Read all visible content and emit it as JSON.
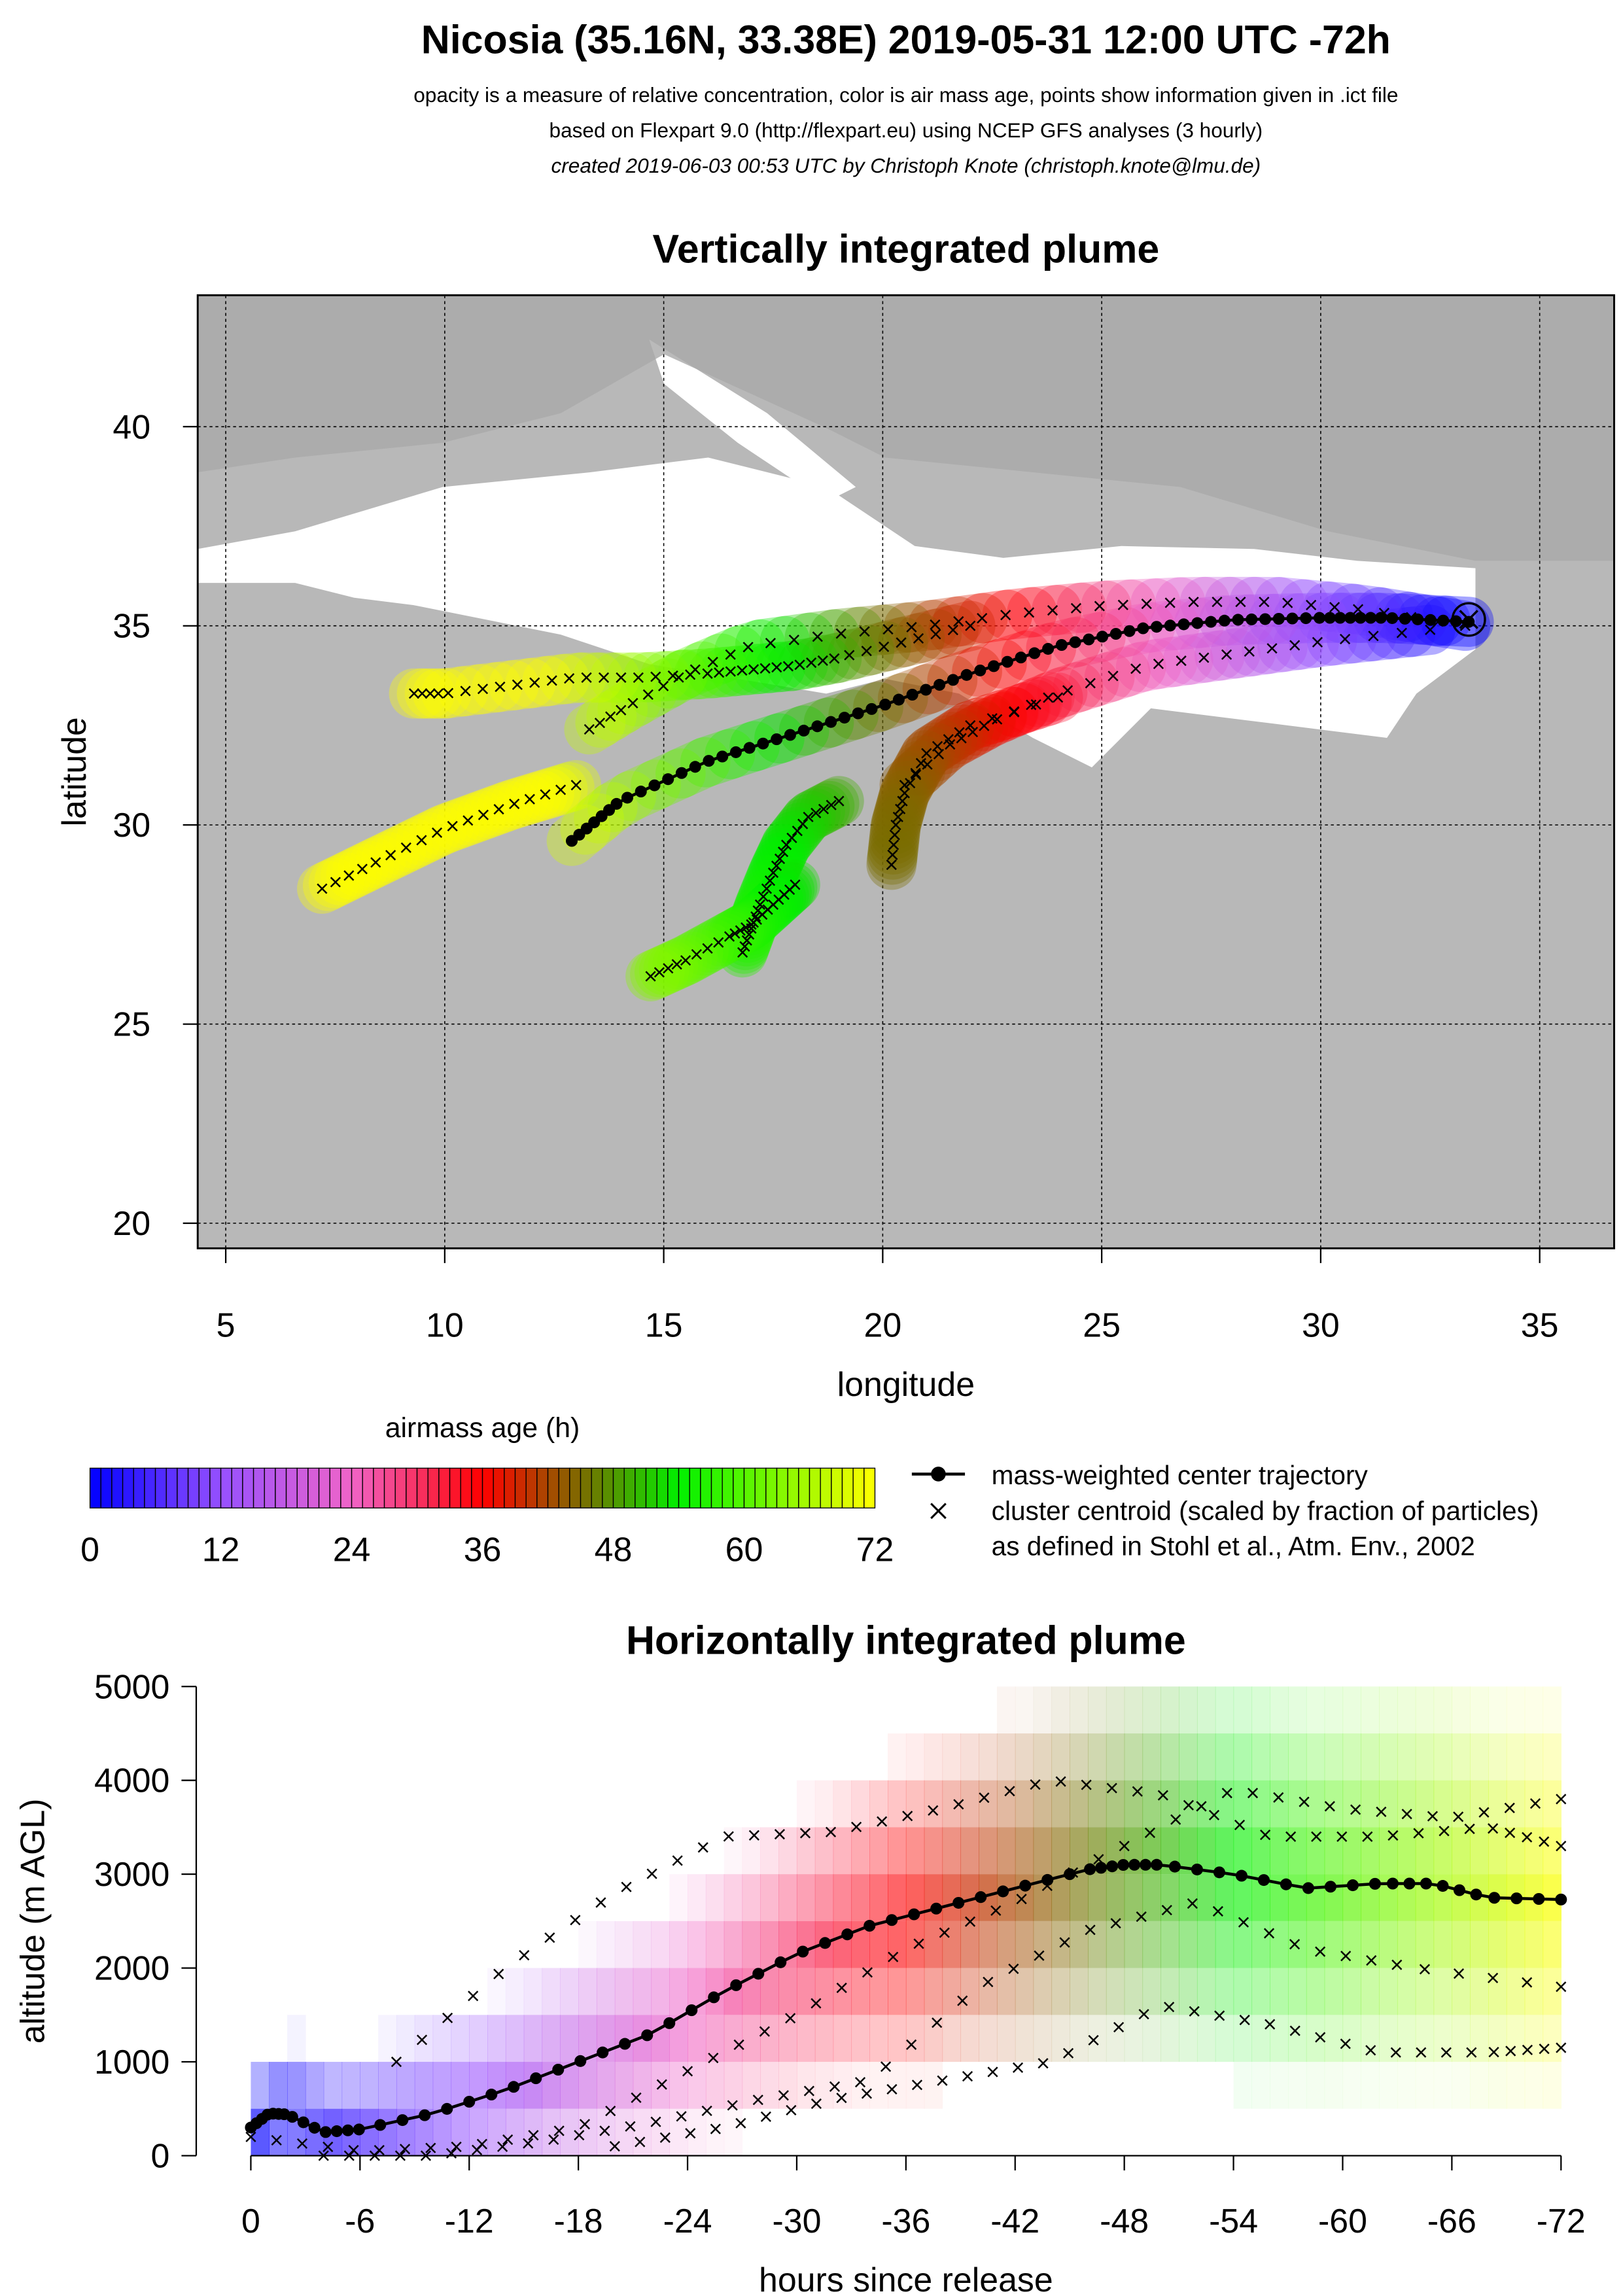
{
  "header": {
    "title": "Nicosia (35.16N, 33.38E) 2019-05-31 12:00 UTC -72h",
    "line1": "opacity is a measure of relative concentration, color is air mass age, points show information given in .ict file",
    "line2": "based on Flexpart 9.0 (http://flexpart.eu) using NCEP GFS analyses (3 hourly)",
    "line3": "created 2019-06-03 00:53 UTC by Christoph Knote (christoph.knote@lmu.de)"
  },
  "chart_data": [
    {
      "type": "scatter",
      "title": "Vertically integrated plume",
      "xlabel": "longitude",
      "ylabel": "latitude",
      "xlim": [
        4.36,
        36.7
      ],
      "ylim": [
        19.37,
        43.3
      ],
      "xticks": [
        "5",
        "10",
        "15",
        "20",
        "25",
        "30",
        "35"
      ],
      "yticks": [
        "20",
        "25",
        "30",
        "35",
        "40"
      ],
      "grid": true,
      "release_point": {
        "lon": 33.38,
        "lat": 35.16
      },
      "center_trajectory": {
        "lon": [
          33.38,
          31.5,
          30,
          28,
          26,
          24,
          22,
          20,
          18,
          16,
          14,
          12.9
        ],
        "lat": [
          35.1,
          35.2,
          35.2,
          35.15,
          34.95,
          34.5,
          33.8,
          33.0,
          32.3,
          31.6,
          30.6,
          29.6
        ]
      },
      "clusters": [
        {
          "lon": [
            33.3,
            31,
            29,
            27,
            25,
            23,
            21,
            19,
            17,
            15.5,
            14.2,
            13.3
          ],
          "lat": [
            35.0,
            35.4,
            35.6,
            35.6,
            35.5,
            35.3,
            35.0,
            34.8,
            34.5,
            33.8,
            33.0,
            32.4
          ]
        },
        {
          "lon": [
            32.5,
            30,
            28,
            26,
            24,
            22.5,
            21.5,
            20.5
          ],
          "lat": [
            34.9,
            34.6,
            34.3,
            34.0,
            33.3,
            32.6,
            32.0,
            31.0
          ]
        },
        {
          "lon": [
            22,
            20.5,
            19,
            18,
            17,
            16,
            14.5,
            13,
            11.5,
            10,
            9.3
          ],
          "lat": [
            35.0,
            34.6,
            34.2,
            34.0,
            33.9,
            33.8,
            33.7,
            33.7,
            33.5,
            33.3,
            33.3
          ]
        },
        {
          "lon": [
            24,
            22,
            21,
            20.5,
            20.3,
            20.2
          ],
          "lat": [
            33.2,
            32.5,
            31.8,
            30.8,
            30.0,
            29.0
          ]
        },
        {
          "lon": [
            19,
            18.3,
            17.8,
            17.5,
            17.2,
            17,
            16.8
          ],
          "lat": [
            30.6,
            30.2,
            29.5,
            28.8,
            28.0,
            27.4,
            26.8
          ]
        },
        {
          "lon": [
            13,
            11.5,
            10,
            8.5,
            7.2
          ],
          "lat": [
            31.0,
            30.5,
            29.9,
            29.1,
            28.4
          ]
        },
        {
          "lon": [
            18,
            17.5,
            17,
            16.5,
            15.5,
            14.7
          ],
          "lat": [
            28.5,
            28.0,
            27.5,
            27.2,
            26.6,
            26.2
          ]
        }
      ]
    },
    {
      "type": "line",
      "title": "Horizontally integrated plume",
      "xlabel": "hours since release",
      "ylabel": "altitude (m AGL)",
      "xlim": [
        0,
        -72
      ],
      "ylim": [
        0,
        5000
      ],
      "xticks": [
        "0",
        "-6",
        "-12",
        "-18",
        "-24",
        "-30",
        "-36",
        "-42",
        "-48",
        "-54",
        "-60",
        "-66",
        "-72"
      ],
      "yticks": [
        "0",
        "1000",
        "2000",
        "3000",
        "4000",
        "5000"
      ],
      "center_trajectory": {
        "hours": [
          0,
          -1,
          -2,
          -4,
          -6,
          -10,
          -14,
          -18,
          -22,
          -26,
          -30,
          -34,
          -38,
          -42,
          -46,
          -48,
          -50,
          -54,
          -58,
          -62,
          -65,
          -68,
          -72
        ],
        "altitude": [
          300,
          450,
          440,
          250,
          280,
          450,
          700,
          1000,
          1300,
          1750,
          2150,
          2450,
          2650,
          2850,
          3050,
          3100,
          3100,
          3000,
          2850,
          2900,
          2900,
          2750,
          2730
        ]
      },
      "clusters": [
        {
          "hours": [
            0,
            -6,
            -12,
            -18,
            -24,
            -30,
            -36,
            -42,
            -48,
            -54,
            -60,
            -66,
            -72
          ],
          "altitude": [
            200,
            50,
            100,
            300,
            900,
            1500,
            2200,
            2700,
            3300,
            3900,
            3700,
            3600,
            3800
          ]
        },
        {
          "hours": [
            -8,
            -14,
            -20,
            -26,
            -32,
            -38,
            -44,
            -50,
            -56,
            -62,
            -68,
            -72
          ],
          "altitude": [
            1000,
            2000,
            2800,
            3400,
            3450,
            3700,
            4000,
            3850,
            3400,
            3400,
            3500,
            3300
          ]
        },
        {
          "hours": [
            -4,
            -10,
            -16,
            -22,
            -28,
            -34,
            -40,
            -46,
            -52,
            -58,
            -64,
            -72
          ],
          "altitude": [
            0,
            0,
            150,
            350,
            600,
            800,
            1800,
            2400,
            2700,
            2200,
            2000,
            1800
          ]
        },
        {
          "hours": [
            -20,
            -26,
            -32,
            -38,
            -44,
            -50,
            -56,
            -62,
            -68,
            -72
          ],
          "altitude": [
            100,
            300,
            600,
            800,
            1000,
            1600,
            1400,
            1100,
            1100,
            1150
          ]
        }
      ]
    }
  ],
  "legend": {
    "title": "airmass age (h)",
    "ticks": [
      "0",
      "12",
      "24",
      "36",
      "48",
      "60",
      "72"
    ],
    "center_label": "mass-weighted center trajectory",
    "cluster_label": "cluster centroid (scaled by fraction of particles)",
    "cluster_note": "as defined in Stohl et al., Atm. Env., 2002"
  }
}
